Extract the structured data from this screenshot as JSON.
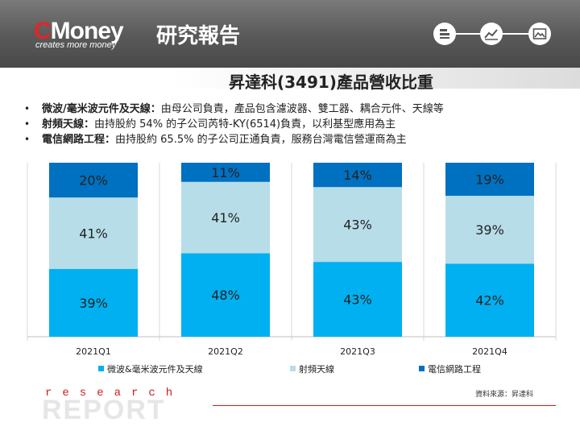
{
  "header": {
    "brand_c": "C",
    "brand_rest": "Money",
    "brand_cn": "研究報告",
    "tagline": "creates more money"
  },
  "title": "昇達科(3491)產品營收比重",
  "bullets": [
    {
      "label": "微波/毫米波元件及天線：",
      "text": "由母公司負責，產品包含濾波器、雙工器、耦合元件、天線等"
    },
    {
      "label": "射頻天線：",
      "text": "由持股約 54% 的子公司芮特-KY(6514)負責，以利基型應用為主"
    },
    {
      "label": "電信網路工程：",
      "text": "由持股約 65.5% 的子公司正通負責，服務台灣電信營運商為主"
    }
  ],
  "chart_data": {
    "type": "bar",
    "stacked": true,
    "categories": [
      "2021Q1",
      "2021Q2",
      "2021Q3",
      "2021Q4"
    ],
    "series": [
      {
        "name": "微波&毫米波元件及天線",
        "color": "#00b0f0",
        "values": [
          39,
          48,
          43,
          42
        ],
        "labels": [
          "39%",
          "48%",
          "43%",
          "42%"
        ]
      },
      {
        "name": "射頻天線",
        "color": "#b7dde8",
        "values": [
          41,
          41,
          43,
          39
        ],
        "labels": [
          "41%",
          "41%",
          "43%",
          "39%"
        ]
      },
      {
        "name": "電信網路工程",
        "color": "#0070c0",
        "values": [
          20,
          11,
          14,
          19
        ],
        "labels": [
          "20%",
          "11%",
          "14%",
          "19%"
        ]
      }
    ],
    "ylim": [
      0,
      100
    ],
    "legend": "bottom"
  },
  "footer": {
    "research": "research",
    "report": "REPORT",
    "source": "資料來源：昇達科"
  },
  "colors": {
    "header_dark": "#444444",
    "accent_red": "#cc1f1f"
  }
}
